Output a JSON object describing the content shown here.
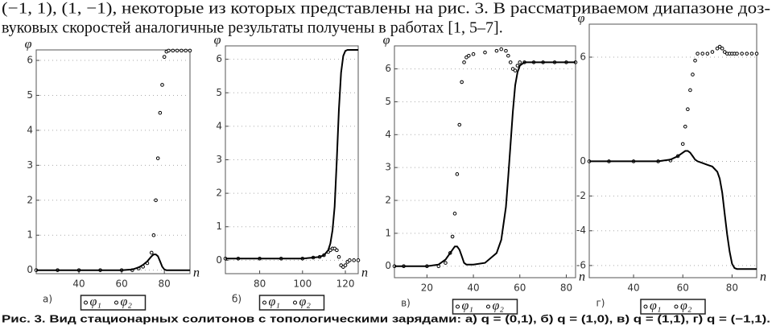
{
  "text": {
    "lines": [
      "(−1, 1), (1, −1),  некоторые из которых представлены на рис. 3. В рассматриваемом диапазоне доз-",
      "вуковых скоростей аналогичные результаты получены в работах [1, 5–7]."
    ]
  },
  "chart_data": [
    {
      "type": "line",
      "label": "а)",
      "y_label": "φ",
      "x_label": "n",
      "grid": true,
      "xlim": [
        20,
        92
      ],
      "ylim": [
        -0.1,
        6.3
      ],
      "xticks": [
        40,
        60,
        80
      ],
      "yticks": [
        0,
        1,
        2,
        3,
        4,
        5,
        6
      ],
      "x": [
        20,
        30,
        40,
        50,
        60,
        65,
        68,
        70,
        72,
        74,
        75,
        76,
        77,
        78,
        79,
        80,
        81,
        82,
        84,
        86,
        88,
        90,
        92
      ],
      "series": [
        {
          "name": "φ₁",
          "color": "#000000",
          "style": "markers",
          "values": [
            0,
            0,
            0,
            0,
            0,
            0,
            0.05,
            0.1,
            0.2,
            0.5,
            1.0,
            2.0,
            3.2,
            4.5,
            5.3,
            6.1,
            6.25,
            6.28,
            6.28,
            6.28,
            6.28,
            6.28,
            6.28
          ]
        },
        {
          "name": "φ₂",
          "color": "#000000",
          "style": "line",
          "values": [
            0,
            0,
            0,
            0,
            0,
            0.02,
            0.08,
            0.15,
            0.25,
            0.4,
            0.45,
            0.45,
            0.4,
            0.25,
            0.1,
            0.02,
            0,
            0,
            0,
            0,
            0,
            0,
            0
          ]
        }
      ]
    },
    {
      "type": "line",
      "label": "б)",
      "y_label": "φ",
      "x_label": "n",
      "grid": true,
      "xlim": [
        64,
        126
      ],
      "ylim": [
        -0.4,
        6.4
      ],
      "xticks": [
        80,
        100,
        120
      ],
      "yticks": [
        0,
        1,
        2,
        3,
        4,
        5,
        6
      ],
      "x": [
        64,
        70,
        80,
        90,
        100,
        105,
        108,
        110,
        112,
        113,
        114,
        115,
        116,
        117,
        118,
        119,
        120,
        121,
        122,
        124,
        126
      ],
      "series": [
        {
          "name": "φ₁",
          "color": "#000000",
          "style": "markers",
          "values": [
            0.05,
            0.05,
            0.05,
            0.05,
            0.05,
            0.08,
            0.1,
            0.15,
            0.25,
            0.3,
            0.35,
            0.35,
            0.3,
            0.1,
            -0.15,
            -0.2,
            -0.15,
            -0.05,
            0,
            0,
            0
          ]
        },
        {
          "name": "φ₂",
          "color": "#000000",
          "style": "line",
          "values": [
            0.05,
            0.05,
            0.05,
            0.05,
            0.05,
            0.08,
            0.1,
            0.15,
            0.3,
            0.5,
            0.9,
            1.6,
            3.0,
            4.5,
            5.6,
            6.1,
            6.25,
            6.28,
            6.28,
            6.28,
            6.28
          ]
        }
      ]
    },
    {
      "type": "line",
      "label": "в)",
      "y_label": "φ",
      "x_label": "n",
      "grid": true,
      "xlim": [
        6,
        84
      ],
      "ylim": [
        -0.35,
        6.7
      ],
      "xticks": [
        20,
        40,
        60,
        80
      ],
      "yticks": [
        0,
        1,
        2,
        3,
        4,
        5,
        6
      ],
      "x": [
        6,
        10,
        20,
        25,
        28,
        30,
        31,
        32,
        33,
        34,
        35,
        36,
        37,
        38,
        40,
        45,
        50,
        52,
        54,
        55,
        56,
        57,
        58,
        59,
        60,
        62,
        66,
        70,
        75,
        80,
        84
      ],
      "series": [
        {
          "name": "φ₁",
          "color": "#000000",
          "style": "markers",
          "values": [
            0,
            0,
            0,
            0,
            0.1,
            0.4,
            0.9,
            1.6,
            2.8,
            4.3,
            5.6,
            6.2,
            6.35,
            6.4,
            6.45,
            6.5,
            6.55,
            6.6,
            6.55,
            6.4,
            6.2,
            6.0,
            5.95,
            6.1,
            6.2,
            6.2,
            6.2,
            6.2,
            6.2,
            6.2,
            6.2
          ]
        },
        {
          "name": "φ₂",
          "color": "#000000",
          "style": "line",
          "values": [
            0,
            0,
            0,
            0.05,
            0.2,
            0.4,
            0.5,
            0.6,
            0.6,
            0.5,
            0.3,
            0.1,
            0.05,
            0.05,
            0.05,
            0.1,
            0.4,
            0.8,
            1.8,
            2.7,
            3.7,
            4.7,
            5.5,
            5.9,
            6.1,
            6.2,
            6.2,
            6.2,
            6.2,
            6.2,
            6.2
          ]
        }
      ]
    },
    {
      "type": "line",
      "label": "г)",
      "y_label": "φ",
      "x_label": "n",
      "grid": true,
      "xlim": [
        22,
        90
      ],
      "ylim": [
        -6.7,
        7.9
      ],
      "xticks": [
        40,
        60,
        80
      ],
      "yticks": [
        -6,
        -4,
        -2,
        0,
        6
      ],
      "x": [
        22,
        30,
        40,
        50,
        55,
        58,
        60,
        61,
        62,
        63,
        64,
        65,
        66,
        68,
        70,
        72,
        74,
        75,
        76,
        77,
        78,
        79,
        80,
        81,
        82,
        84,
        86,
        88,
        90
      ],
      "series": [
        {
          "name": "φ₁",
          "color": "#000000",
          "style": "markers",
          "values": [
            0,
            0,
            0,
            0,
            0.05,
            0.3,
            1.0,
            2.0,
            3.0,
            4.1,
            5.0,
            5.8,
            6.2,
            6.2,
            6.2,
            6.3,
            6.5,
            6.6,
            6.5,
            6.3,
            6.2,
            6.2,
            6.2,
            6.2,
            6.2,
            6.2,
            6.2,
            6.2,
            6.2
          ]
        },
        {
          "name": "φ₂",
          "color": "#000000",
          "style": "line",
          "values": [
            0,
            0,
            0,
            0,
            0.1,
            0.3,
            0.5,
            0.6,
            0.6,
            0.5,
            0.3,
            0.1,
            0,
            -0.1,
            -0.2,
            -0.3,
            -0.6,
            -1.0,
            -1.8,
            -3.0,
            -4.2,
            -5.2,
            -5.9,
            -6.15,
            -6.2,
            -6.2,
            -6.2,
            -6.2,
            -6.2
          ]
        }
      ]
    }
  ],
  "caption": "Рис. 3. Вид стационарных солитонов с топологическими зарядами: а) q = (0,1), б) q = (1,0), в) q = (1,1), г) q = (−1,1)."
}
